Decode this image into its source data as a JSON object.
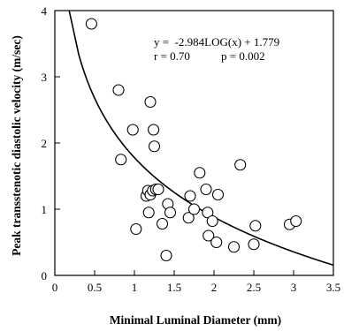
{
  "chart_data": {
    "type": "scatter",
    "title": "",
    "xlabel": "Minimal Luminal Diameter (mm)",
    "ylabel": "Peak transstenotic diastolic velocity (m/sec)",
    "xlim": [
      0,
      3.5
    ],
    "ylim": [
      0,
      4
    ],
    "x_ticks": [
      "0",
      "0.5",
      "1",
      "1.5",
      "2",
      "2.5",
      "3",
      "3.5"
    ],
    "y_ticks": [
      "0",
      "1",
      "2",
      "3",
      "4"
    ],
    "grid": false,
    "legend": "none",
    "points": [
      {
        "x": 0.46,
        "y": 3.8
      },
      {
        "x": 0.8,
        "y": 2.8
      },
      {
        "x": 0.83,
        "y": 1.75
      },
      {
        "x": 0.98,
        "y": 2.2
      },
      {
        "x": 1.02,
        "y": 0.7
      },
      {
        "x": 1.15,
        "y": 1.2
      },
      {
        "x": 1.17,
        "y": 1.28
      },
      {
        "x": 1.18,
        "y": 0.95
      },
      {
        "x": 1.2,
        "y": 2.62
      },
      {
        "x": 1.2,
        "y": 1.22
      },
      {
        "x": 1.23,
        "y": 1.28
      },
      {
        "x": 1.24,
        "y": 2.2
      },
      {
        "x": 1.25,
        "y": 1.95
      },
      {
        "x": 1.27,
        "y": 1.3
      },
      {
        "x": 1.3,
        "y": 1.3
      },
      {
        "x": 1.35,
        "y": 0.78
      },
      {
        "x": 1.4,
        "y": 0.3
      },
      {
        "x": 1.42,
        "y": 1.08
      },
      {
        "x": 1.45,
        "y": 0.95
      },
      {
        "x": 1.68,
        "y": 0.87
      },
      {
        "x": 1.7,
        "y": 1.2
      },
      {
        "x": 1.75,
        "y": 1.0
      },
      {
        "x": 1.82,
        "y": 1.55
      },
      {
        "x": 1.9,
        "y": 1.3
      },
      {
        "x": 1.92,
        "y": 0.95
      },
      {
        "x": 1.93,
        "y": 0.6
      },
      {
        "x": 1.98,
        "y": 0.82
      },
      {
        "x": 2.03,
        "y": 0.5
      },
      {
        "x": 2.05,
        "y": 1.22
      },
      {
        "x": 2.25,
        "y": 0.43
      },
      {
        "x": 2.33,
        "y": 1.67
      },
      {
        "x": 2.5,
        "y": 0.47
      },
      {
        "x": 2.52,
        "y": 0.75
      },
      {
        "x": 2.95,
        "y": 0.77
      },
      {
        "x": 3.03,
        "y": 0.82
      }
    ],
    "fit": {
      "a": -2.984,
      "b": 1.779
    },
    "annotations": {
      "equation": "y =  -2.984LOG(x) + 1.779",
      "r": "r = 0.70",
      "p": "p = 0.002"
    }
  }
}
